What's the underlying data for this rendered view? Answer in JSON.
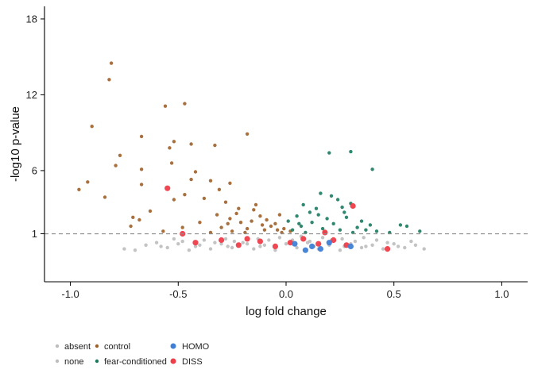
{
  "chart_data": {
    "type": "scatter",
    "title": "",
    "xlabel": "log fold change",
    "ylabel": "-log10 p-value",
    "xlim": [
      -1.12,
      1.12
    ],
    "ylim": [
      -2.8,
      19
    ],
    "x_ticks": [
      {
        "value": -1.0,
        "label": "-1.0"
      },
      {
        "value": -0.5,
        "label": "-0.5"
      },
      {
        "value": 0.0,
        "label": "0.0"
      },
      {
        "value": 0.5,
        "label": "0.5"
      },
      {
        "value": 1.0,
        "label": "1.0"
      }
    ],
    "y_ticks": [
      {
        "value": 1,
        "label": "1"
      },
      {
        "value": 6,
        "label": "6"
      },
      {
        "value": 12,
        "label": "12"
      },
      {
        "value": 18,
        "label": "18"
      }
    ],
    "threshold_y": 1,
    "threshold_style": "dashed",
    "grid": false,
    "legend_position": "bottom-left",
    "legend": [
      {
        "label": "absent",
        "color": "#bdbdbd",
        "size": "small"
      },
      {
        "label": "none",
        "color": "#bdbdbd",
        "size": "small"
      },
      {
        "label": "control",
        "color": "#a0602a",
        "size": "small"
      },
      {
        "label": "fear-conditioned",
        "color": "#1b7a5f",
        "size": "small"
      },
      {
        "label": "HOMO",
        "color": "#3f7fd6",
        "size": "large"
      },
      {
        "label": "DISS",
        "color": "#ef3e4a",
        "size": "large"
      }
    ],
    "series": [
      {
        "name": "control",
        "color": "#a0602a",
        "points": [
          {
            "x": -0.81,
            "y": 14.5
          },
          {
            "x": -0.82,
            "y": 13.2
          },
          {
            "x": -0.47,
            "y": 11.3
          },
          {
            "x": -0.56,
            "y": 11.1
          },
          {
            "x": -0.9,
            "y": 9.5
          },
          {
            "x": -0.18,
            "y": 8.9
          },
          {
            "x": -0.67,
            "y": 8.7
          },
          {
            "x": -0.52,
            "y": 8.3
          },
          {
            "x": -0.33,
            "y": 8.0
          },
          {
            "x": -0.44,
            "y": 8.1
          },
          {
            "x": -0.54,
            "y": 7.8
          },
          {
            "x": -0.77,
            "y": 7.2
          },
          {
            "x": -0.79,
            "y": 6.4
          },
          {
            "x": -0.67,
            "y": 6.1
          },
          {
            "x": -0.53,
            "y": 6.6
          },
          {
            "x": -0.42,
            "y": 5.9
          },
          {
            "x": -0.67,
            "y": 4.9
          },
          {
            "x": -0.92,
            "y": 5.1
          },
          {
            "x": -0.96,
            "y": 4.5
          },
          {
            "x": -0.84,
            "y": 3.9
          },
          {
            "x": -0.35,
            "y": 5.2
          },
          {
            "x": -0.44,
            "y": 5.3
          },
          {
            "x": -0.26,
            "y": 5.0
          },
          {
            "x": -0.47,
            "y": 4.1
          },
          {
            "x": -0.52,
            "y": 3.7
          },
          {
            "x": -0.31,
            "y": 4.5
          },
          {
            "x": -0.63,
            "y": 2.8
          },
          {
            "x": -0.71,
            "y": 2.3
          },
          {
            "x": -0.72,
            "y": 1.6
          },
          {
            "x": -0.68,
            "y": 2.1
          },
          {
            "x": -0.57,
            "y": 1.2
          },
          {
            "x": -0.48,
            "y": 1.5
          },
          {
            "x": -0.38,
            "y": 3.8
          },
          {
            "x": -0.28,
            "y": 3.5
          },
          {
            "x": -0.32,
            "y": 2.5
          },
          {
            "x": -0.26,
            "y": 2.2
          },
          {
            "x": -0.22,
            "y": 3.0
          },
          {
            "x": -0.15,
            "y": 2.9
          },
          {
            "x": -0.12,
            "y": 2.4
          },
          {
            "x": -0.21,
            "y": 1.9
          },
          {
            "x": -0.09,
            "y": 2.1
          },
          {
            "x": -0.05,
            "y": 1.8
          },
          {
            "x": -0.03,
            "y": 2.5
          },
          {
            "x": -0.18,
            "y": 1.4
          },
          {
            "x": -0.1,
            "y": 1.3
          },
          {
            "x": -0.02,
            "y": 1.1
          },
          {
            "x": -0.25,
            "y": 1.2
          },
          {
            "x": -0.3,
            "y": 1.5
          },
          {
            "x": -0.35,
            "y": 1.1
          },
          {
            "x": -0.4,
            "y": 1.9
          },
          {
            "x": -0.14,
            "y": 3.3
          },
          {
            "x": -0.07,
            "y": 1.6
          },
          {
            "x": -0.01,
            "y": 1.4
          },
          {
            "x": 0.02,
            "y": 1.2
          },
          {
            "x": -0.16,
            "y": 2.0
          },
          {
            "x": -0.23,
            "y": 2.6
          },
          {
            "x": -0.11,
            "y": 1.7
          },
          {
            "x": -0.04,
            "y": 1.3
          },
          {
            "x": -0.19,
            "y": 1.1
          },
          {
            "x": -0.27,
            "y": 1.8
          }
        ]
      },
      {
        "name": "fear-conditioned",
        "color": "#1b7a5f",
        "points": [
          {
            "x": 0.3,
            "y": 7.5
          },
          {
            "x": 0.2,
            "y": 7.4
          },
          {
            "x": 0.4,
            "y": 6.1
          },
          {
            "x": 0.16,
            "y": 4.2
          },
          {
            "x": 0.21,
            "y": 4.0
          },
          {
            "x": 0.24,
            "y": 3.7
          },
          {
            "x": 0.3,
            "y": 3.4
          },
          {
            "x": 0.26,
            "y": 3.1
          },
          {
            "x": 0.08,
            "y": 3.3
          },
          {
            "x": 0.14,
            "y": 3.0
          },
          {
            "x": 0.11,
            "y": 2.7
          },
          {
            "x": 0.05,
            "y": 2.4
          },
          {
            "x": 0.19,
            "y": 2.2
          },
          {
            "x": 0.28,
            "y": 2.3
          },
          {
            "x": 0.35,
            "y": 2.0
          },
          {
            "x": 0.39,
            "y": 1.7
          },
          {
            "x": 0.42,
            "y": 1.2
          },
          {
            "x": 0.53,
            "y": 1.7
          },
          {
            "x": 0.56,
            "y": 1.6
          },
          {
            "x": 0.62,
            "y": 1.2
          },
          {
            "x": 0.48,
            "y": 1.1
          },
          {
            "x": 0.33,
            "y": 1.5
          },
          {
            "x": 0.22,
            "y": 1.8
          },
          {
            "x": 0.17,
            "y": 1.4
          },
          {
            "x": 0.12,
            "y": 1.9
          },
          {
            "x": 0.07,
            "y": 1.6
          },
          {
            "x": 0.03,
            "y": 1.3
          },
          {
            "x": 0.01,
            "y": 2.0
          },
          {
            "x": 0.09,
            "y": 1.1
          },
          {
            "x": 0.15,
            "y": 2.5
          },
          {
            "x": 0.25,
            "y": 1.3
          },
          {
            "x": 0.31,
            "y": 1.1
          },
          {
            "x": 0.37,
            "y": 1.3
          },
          {
            "x": 0.18,
            "y": 1.1
          },
          {
            "x": 0.06,
            "y": 1.8
          },
          {
            "x": 0.27,
            "y": 2.7
          }
        ]
      },
      {
        "name": "HOMO",
        "color": "#3f7fd6",
        "points": [
          {
            "x": 0.09,
            "y": -0.3
          },
          {
            "x": 0.04,
            "y": 0.2
          },
          {
            "x": 0.12,
            "y": 0.0
          },
          {
            "x": 0.2,
            "y": 0.3
          },
          {
            "x": 0.3,
            "y": 0.0
          },
          {
            "x": 0.16,
            "y": -0.2
          }
        ]
      },
      {
        "name": "DISS",
        "color": "#ef3e4a",
        "points": [
          {
            "x": -0.55,
            "y": 4.6
          },
          {
            "x": 0.31,
            "y": 3.2
          },
          {
            "x": -0.48,
            "y": 1.0
          },
          {
            "x": 0.47,
            "y": -0.2
          },
          {
            "x": -0.42,
            "y": 0.3
          },
          {
            "x": -0.3,
            "y": 0.5
          },
          {
            "x": -0.22,
            "y": 0.1
          },
          {
            "x": -0.12,
            "y": 0.4
          },
          {
            "x": -0.05,
            "y": 0.0
          },
          {
            "x": 0.02,
            "y": 0.3
          },
          {
            "x": 0.08,
            "y": 0.6
          },
          {
            "x": 0.15,
            "y": 0.2
          },
          {
            "x": 0.22,
            "y": 0.5
          },
          {
            "x": 0.28,
            "y": 0.1
          },
          {
            "x": -0.18,
            "y": 0.6
          },
          {
            "x": 0.18,
            "y": 1.1
          }
        ]
      },
      {
        "name": "absent",
        "color": "#bdbdbd",
        "points": [
          {
            "x": -0.75,
            "y": -0.2
          },
          {
            "x": -0.65,
            "y": 0.1
          },
          {
            "x": -0.55,
            "y": -0.1
          },
          {
            "x": -0.5,
            "y": 0.2
          },
          {
            "x": -0.45,
            "y": -0.3
          },
          {
            "x": -0.4,
            "y": 0.1
          },
          {
            "x": -0.35,
            "y": -0.2
          },
          {
            "x": -0.3,
            "y": 0.2
          },
          {
            "x": -0.25,
            "y": -0.1
          },
          {
            "x": -0.2,
            "y": 0.3
          },
          {
            "x": -0.15,
            "y": -0.2
          },
          {
            "x": -0.1,
            "y": 0.1
          },
          {
            "x": -0.05,
            "y": -0.3
          },
          {
            "x": 0.0,
            "y": 0.2
          },
          {
            "x": 0.05,
            "y": -0.1
          },
          {
            "x": 0.1,
            "y": 0.3
          },
          {
            "x": 0.15,
            "y": -0.2
          },
          {
            "x": 0.2,
            "y": 0.1
          },
          {
            "x": 0.25,
            "y": -0.3
          },
          {
            "x": 0.3,
            "y": 0.2
          },
          {
            "x": 0.35,
            "y": -0.1
          },
          {
            "x": 0.4,
            "y": 0.1
          },
          {
            "x": 0.45,
            "y": -0.2
          },
          {
            "x": 0.5,
            "y": 0.2
          },
          {
            "x": 0.55,
            "y": -0.1
          },
          {
            "x": 0.6,
            "y": 0.1
          },
          {
            "x": 0.64,
            "y": -0.2
          },
          {
            "x": -0.6,
            "y": 0.3
          },
          {
            "x": -0.7,
            "y": -0.3
          },
          {
            "x": 0.58,
            "y": 0.4
          }
        ]
      },
      {
        "name": "none",
        "color": "#bdbdbd",
        "points": [
          {
            "x": -0.52,
            "y": 0.6
          },
          {
            "x": -0.48,
            "y": 0.4
          },
          {
            "x": -0.38,
            "y": 0.5
          },
          {
            "x": -0.33,
            "y": 0.3
          },
          {
            "x": -0.28,
            "y": 0.6
          },
          {
            "x": -0.24,
            "y": 0.4
          },
          {
            "x": -0.18,
            "y": 0.2
          },
          {
            "x": -0.13,
            "y": 0.6
          },
          {
            "x": -0.08,
            "y": 0.5
          },
          {
            "x": -0.03,
            "y": 0.7
          },
          {
            "x": 0.03,
            "y": 0.5
          },
          {
            "x": 0.07,
            "y": 0.8
          },
          {
            "x": 0.11,
            "y": 0.4
          },
          {
            "x": 0.17,
            "y": 0.7
          },
          {
            "x": 0.21,
            "y": 0.5
          },
          {
            "x": 0.26,
            "y": 0.6
          },
          {
            "x": 0.32,
            "y": 0.4
          },
          {
            "x": 0.36,
            "y": 0.7
          },
          {
            "x": 0.42,
            "y": 0.5
          },
          {
            "x": 0.47,
            "y": 0.3
          },
          {
            "x": -0.58,
            "y": 0.0
          },
          {
            "x": -0.42,
            "y": 0.0
          },
          {
            "x": -0.27,
            "y": 0.0
          },
          {
            "x": -0.12,
            "y": 0.0
          },
          {
            "x": 0.13,
            "y": 0.0
          },
          {
            "x": 0.27,
            "y": 0.0
          },
          {
            "x": 0.37,
            "y": 0.0
          },
          {
            "x": 0.52,
            "y": 0.0
          }
        ]
      }
    ]
  }
}
